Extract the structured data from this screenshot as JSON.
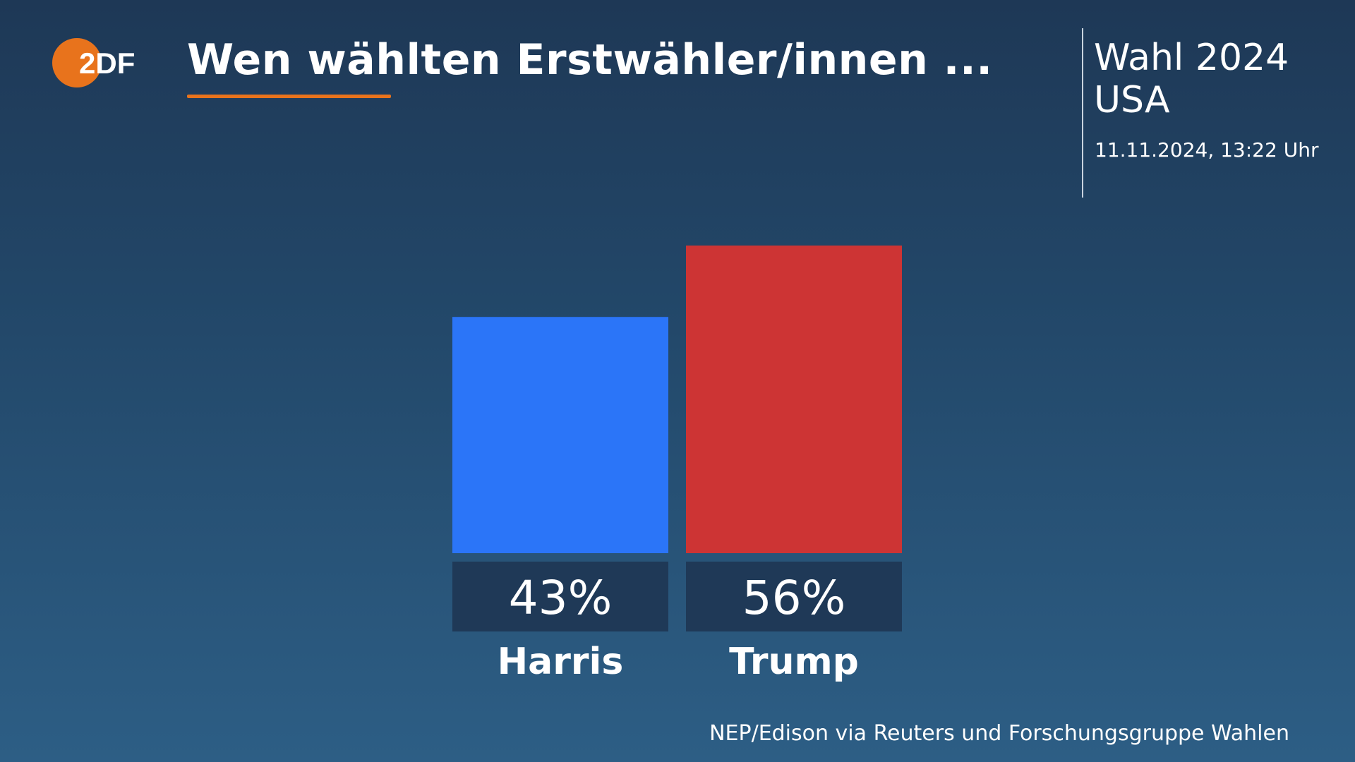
{
  "header": {
    "logo_text": "2DF",
    "title": "Wen wählten Erstwähler/innen ...",
    "event_line1": "Wahl 2024",
    "event_line2": "USA",
    "timestamp": "11.11.2024, 13:22 Uhr"
  },
  "footer": {
    "source": "NEP/Edison via Reuters und Forschungsgruppe Wahlen"
  },
  "colors": {
    "accent": "#e8731c",
    "harris": "#2b75f8",
    "trump": "#cd3434",
    "label_box": "#1f3957"
  },
  "chart_data": {
    "type": "bar",
    "categories": [
      "Harris",
      "Trump"
    ],
    "values": [
      43,
      56
    ],
    "value_labels": [
      "43%",
      "56%"
    ],
    "colors": [
      "#2b75f8",
      "#cd3434"
    ],
    "ylim": [
      0,
      56
    ],
    "title": "",
    "xlabel": "",
    "ylabel": ""
  }
}
